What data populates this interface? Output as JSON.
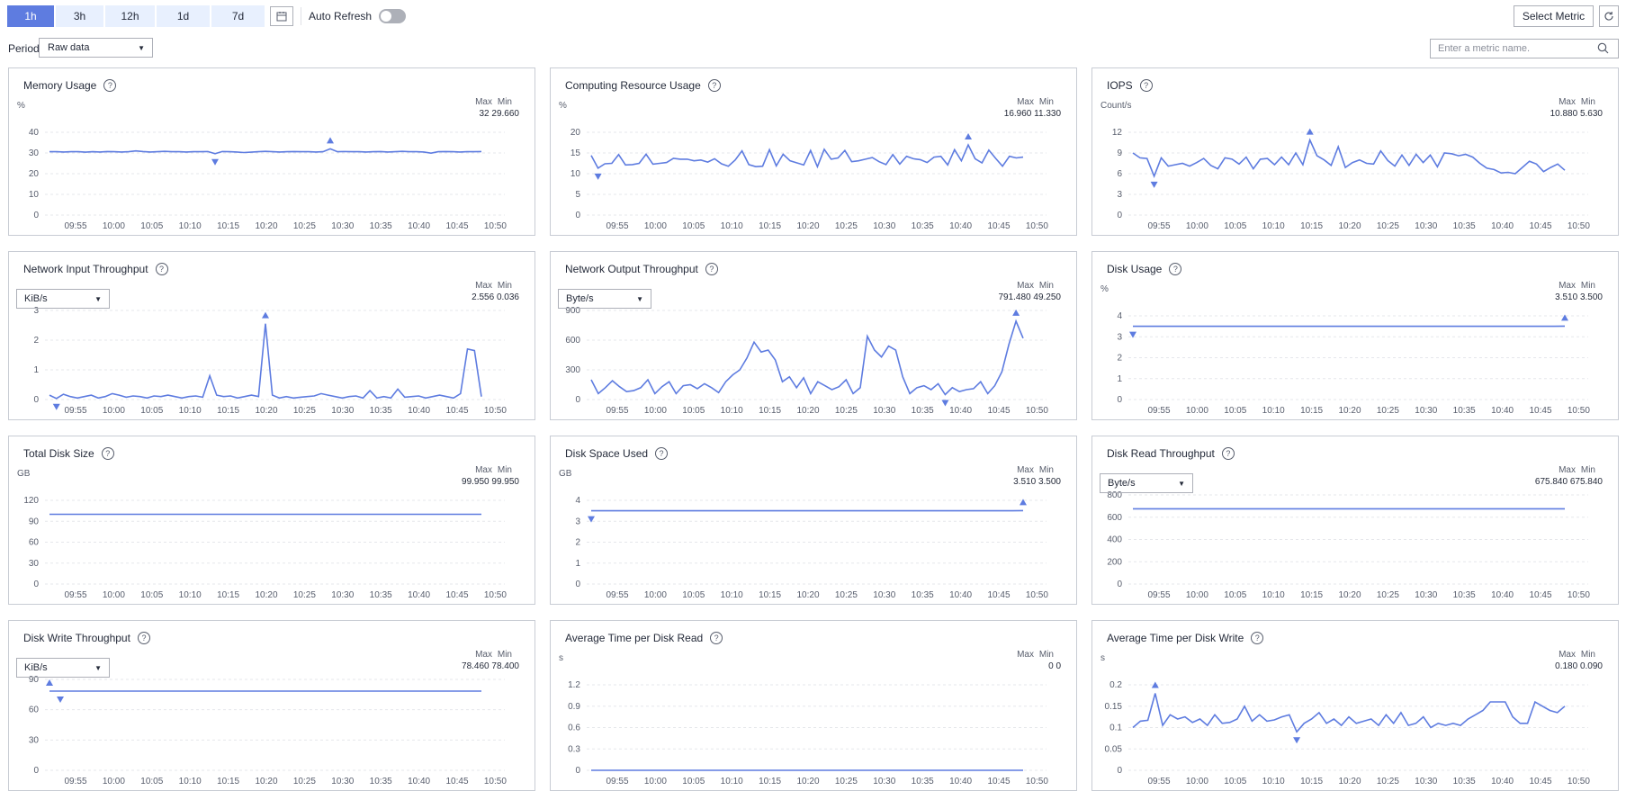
{
  "toolbar": {
    "time_ranges": [
      "1h",
      "3h",
      "12h",
      "1d",
      "7d"
    ],
    "active_range": "1h",
    "auto_refresh_label": "Auto Refresh",
    "auto_refresh_on": false,
    "select_metric_label": "Select Metric",
    "period_label": "Period",
    "period_value": "Raw data",
    "search_placeholder": "Enter a metric name."
  },
  "colors": {
    "accent": "#5e7ce0",
    "line": "#5e7ce0",
    "border": "#c8ccd4",
    "grid": "#e5e7eb"
  },
  "max_label": "Max",
  "min_label": "Min",
  "x_ticks": [
    "09:55",
    "10:00",
    "10:05",
    "10:10",
    "10:15",
    "10:20",
    "10:25",
    "10:30",
    "10:35",
    "10:40",
    "10:45",
    "10:50"
  ],
  "charts": [
    {
      "title": "Memory Usage",
      "unit": "%",
      "selector": null,
      "max": "32",
      "min": "29.660",
      "y_ticks": [
        0,
        10,
        20,
        30,
        40
      ],
      "ylim": [
        0,
        40
      ],
      "values": [
        30.6,
        30.6,
        30.5,
        30.6,
        30.6,
        30.4,
        30.6,
        30.5,
        30.7,
        30.6,
        30.5,
        30.6,
        31.0,
        30.7,
        30.5,
        30.6,
        30.8,
        30.6,
        30.6,
        30.5,
        30.6,
        30.6,
        30.7,
        29.66,
        30.7,
        30.6,
        30.5,
        30.2,
        30.4,
        30.6,
        30.8,
        30.6,
        30.5,
        30.6,
        30.7,
        30.6,
        30.6,
        30.5,
        30.6,
        32.0,
        30.6,
        30.7,
        30.6,
        30.6,
        30.5,
        30.6,
        30.7,
        30.5,
        30.6,
        30.8,
        30.6,
        30.6,
        30.5,
        29.9,
        30.6,
        30.7,
        30.6,
        30.5,
        30.6,
        30.6,
        30.7
      ]
    },
    {
      "title": "Computing Resource Usage",
      "unit": "%",
      "selector": null,
      "max": "16.960",
      "min": "11.330",
      "y_ticks": [
        0,
        5,
        10,
        15,
        20
      ],
      "ylim": [
        0,
        20
      ],
      "values": [
        14.4,
        11.33,
        12.4,
        12.5,
        14.6,
        12.1,
        12.2,
        12.5,
        14.7,
        12.3,
        12.5,
        12.7,
        13.7,
        13.5,
        13.5,
        13.1,
        13.3,
        12.8,
        13.6,
        12.4,
        11.8,
        13.3,
        15.5,
        12.2,
        11.7,
        11.8,
        15.8,
        11.9,
        14.7,
        13.1,
        12.6,
        12.1,
        15.6,
        11.7,
        15.9,
        13.5,
        13.8,
        15.6,
        12.9,
        13.1,
        13.5,
        13.9,
        12.9,
        12.2,
        14.6,
        12.3,
        14.2,
        13.6,
        13.4,
        12.7,
        14.0,
        14.2,
        12.1,
        15.8,
        13.1,
        16.96,
        13.6,
        12.6,
        15.7,
        13.7,
        11.8,
        14.2,
        13.8,
        14.0
      ]
    },
    {
      "title": "IOPS",
      "unit": "Count/s",
      "selector": null,
      "max": "10.880",
      "min": "5.630",
      "y_ticks": [
        0,
        3,
        6,
        9,
        12
      ],
      "ylim": [
        0,
        12
      ],
      "values": [
        9.0,
        8.3,
        8.2,
        5.63,
        8.3,
        7.1,
        7.3,
        7.5,
        7.1,
        7.6,
        8.2,
        7.2,
        6.7,
        8.3,
        8.1,
        7.4,
        8.4,
        6.7,
        8.1,
        8.2,
        7.3,
        8.4,
        7.3,
        9.0,
        7.3,
        10.88,
        8.6,
        8.0,
        7.2,
        9.9,
        6.9,
        7.6,
        8.0,
        7.5,
        7.4,
        9.3,
        7.9,
        7.1,
        8.7,
        7.2,
        8.8,
        7.6,
        8.7,
        7.0,
        9.0,
        8.9,
        8.6,
        8.8,
        8.4,
        7.5,
        6.8,
        6.6,
        6.1,
        6.2,
        6.0,
        6.9,
        7.8,
        7.4,
        6.3,
        6.9,
        7.4,
        6.5
      ]
    },
    {
      "title": "Network Input Throughput",
      "unit": null,
      "selector": "KiB/s",
      "max": "2.556",
      "min": "0.036",
      "y_ticks": [
        0,
        1,
        2,
        3
      ],
      "ylim": [
        0,
        3
      ],
      "values": [
        0.15,
        0.036,
        0.18,
        0.1,
        0.05,
        0.1,
        0.15,
        0.05,
        0.1,
        0.2,
        0.15,
        0.08,
        0.12,
        0.1,
        0.05,
        0.12,
        0.1,
        0.15,
        0.1,
        0.05,
        0.1,
        0.12,
        0.08,
        0.8,
        0.15,
        0.1,
        0.12,
        0.05,
        0.1,
        0.15,
        0.1,
        2.556,
        0.15,
        0.05,
        0.1,
        0.05,
        0.08,
        0.1,
        0.12,
        0.2,
        0.15,
        0.1,
        0.05,
        0.1,
        0.12,
        0.05,
        0.3,
        0.05,
        0.1,
        0.05,
        0.35,
        0.08,
        0.1,
        0.12,
        0.05,
        0.1,
        0.15,
        0.1,
        0.05,
        0.2,
        1.7,
        1.65,
        0.1
      ]
    },
    {
      "title": "Network Output Throughput",
      "unit": null,
      "selector": "Byte/s",
      "max": "791.480",
      "min": "49.250",
      "y_ticks": [
        0,
        300,
        600,
        900
      ],
      "ylim": [
        0,
        900
      ],
      "values": [
        200,
        60,
        120,
        190,
        130,
        80,
        90,
        120,
        200,
        60,
        130,
        180,
        60,
        140,
        150,
        110,
        160,
        120,
        70,
        180,
        250,
        300,
        420,
        580,
        480,
        500,
        400,
        180,
        230,
        120,
        220,
        60,
        180,
        140,
        100,
        130,
        200,
        60,
        120,
        640,
        500,
        430,
        540,
        500,
        230,
        60,
        120,
        140,
        100,
        160,
        50,
        120,
        80,
        100,
        110,
        180,
        60,
        140,
        280,
        560,
        791.48,
        620
      ]
    },
    {
      "title": "Disk Usage",
      "unit": "%",
      "selector": null,
      "max": "3.510",
      "min": "3.500",
      "y_ticks": [
        0,
        1,
        2,
        3,
        4
      ],
      "ylim": [
        0,
        4
      ],
      "values": [
        3.5,
        3.5,
        3.5,
        3.5,
        3.5,
        3.5,
        3.5,
        3.5,
        3.5,
        3.5,
        3.5,
        3.5,
        3.5,
        3.5,
        3.5,
        3.5,
        3.5,
        3.5,
        3.5,
        3.5,
        3.5,
        3.5,
        3.5,
        3.5,
        3.5,
        3.5,
        3.5,
        3.5,
        3.5,
        3.5,
        3.5,
        3.5,
        3.5,
        3.5,
        3.5,
        3.5,
        3.5,
        3.5,
        3.5,
        3.5,
        3.51
      ]
    },
    {
      "title": "Total Disk Size",
      "unit": "GB",
      "selector": null,
      "max": "99.950",
      "min": "99.950",
      "y_ticks": [
        0,
        30,
        60,
        90,
        120
      ],
      "ylim": [
        0,
        120
      ],
      "values": [
        99.95,
        99.95,
        99.95,
        99.95,
        99.95,
        99.95,
        99.95,
        99.95,
        99.95,
        99.95,
        99.95,
        99.95,
        99.95,
        99.95,
        99.95,
        99.95,
        99.95,
        99.95,
        99.95,
        99.95,
        99.95,
        99.95,
        99.95,
        99.95,
        99.95,
        99.95,
        99.95,
        99.95,
        99.95,
        99.95,
        99.95,
        99.95,
        99.95,
        99.95,
        99.95,
        99.95,
        99.95,
        99.95,
        99.95,
        99.95,
        99.95
      ]
    },
    {
      "title": "Disk Space Used",
      "unit": "GB",
      "selector": null,
      "max": "3.510",
      "min": "3.500",
      "y_ticks": [
        0,
        1,
        2,
        3,
        4
      ],
      "ylim": [
        0,
        4
      ],
      "values": [
        3.5,
        3.5,
        3.5,
        3.5,
        3.5,
        3.5,
        3.5,
        3.5,
        3.5,
        3.5,
        3.5,
        3.5,
        3.5,
        3.5,
        3.5,
        3.5,
        3.5,
        3.5,
        3.5,
        3.5,
        3.5,
        3.5,
        3.5,
        3.5,
        3.5,
        3.5,
        3.5,
        3.5,
        3.5,
        3.5,
        3.5,
        3.5,
        3.5,
        3.5,
        3.5,
        3.5,
        3.5,
        3.5,
        3.5,
        3.5,
        3.51
      ]
    },
    {
      "title": "Disk Read Throughput",
      "unit": null,
      "selector": "Byte/s",
      "max": "675.840",
      "min": "675.840",
      "y_ticks": [
        0,
        200,
        400,
        600,
        800
      ],
      "ylim": [
        0,
        800
      ],
      "values": [
        675.84,
        675.84,
        675.84,
        675.84,
        675.84,
        675.84,
        675.84,
        675.84,
        675.84,
        675.84,
        675.84,
        675.84,
        675.84,
        675.84,
        675.84,
        675.84,
        675.84,
        675.84,
        675.84,
        675.84,
        675.84,
        675.84,
        675.84,
        675.84,
        675.84,
        675.84,
        675.84,
        675.84,
        675.84,
        675.84,
        675.84,
        675.84,
        675.84,
        675.84,
        675.84,
        675.84,
        675.84,
        675.84,
        675.84,
        675.84,
        675.84
      ]
    },
    {
      "title": "Disk Write Throughput",
      "unit": null,
      "selector": "KiB/s",
      "max": "78.460",
      "min": "78.400",
      "y_ticks": [
        0,
        30,
        60,
        90
      ],
      "ylim": [
        0,
        90
      ],
      "values": [
        78.46,
        78.4,
        78.4,
        78.4,
        78.4,
        78.4,
        78.4,
        78.4,
        78.4,
        78.4,
        78.4,
        78.4,
        78.4,
        78.4,
        78.4,
        78.4,
        78.4,
        78.4,
        78.4,
        78.4,
        78.4,
        78.4,
        78.4,
        78.4,
        78.4,
        78.4,
        78.4,
        78.4,
        78.4,
        78.4,
        78.4,
        78.4,
        78.4,
        78.4,
        78.4,
        78.4,
        78.4,
        78.4,
        78.4,
        78.4,
        78.4
      ]
    },
    {
      "title": "Average Time per Disk Read",
      "unit": "s",
      "selector": null,
      "max": "0",
      "min": "0",
      "y_ticks": [
        0,
        0.3,
        0.6,
        0.9,
        1.2
      ],
      "ylim": [
        0,
        1.2
      ],
      "values": [
        0,
        0,
        0,
        0,
        0,
        0,
        0,
        0,
        0,
        0,
        0,
        0,
        0,
        0,
        0,
        0,
        0,
        0,
        0,
        0,
        0,
        0,
        0,
        0,
        0,
        0,
        0,
        0,
        0,
        0,
        0,
        0,
        0,
        0,
        0,
        0,
        0,
        0,
        0,
        0,
        0
      ]
    },
    {
      "title": "Average Time per Disk Write",
      "unit": "s",
      "selector": null,
      "max": "0.180",
      "min": "0.090",
      "y_ticks": [
        0,
        0.05,
        0.1,
        0.15,
        0.2
      ],
      "ylim": [
        0,
        0.2
      ],
      "values": [
        0.1,
        0.115,
        0.117,
        0.18,
        0.105,
        0.13,
        0.12,
        0.125,
        0.112,
        0.12,
        0.105,
        0.13,
        0.11,
        0.112,
        0.12,
        0.15,
        0.115,
        0.13,
        0.115,
        0.118,
        0.125,
        0.13,
        0.09,
        0.11,
        0.12,
        0.135,
        0.11,
        0.12,
        0.105,
        0.125,
        0.11,
        0.115,
        0.12,
        0.105,
        0.13,
        0.11,
        0.135,
        0.105,
        0.11,
        0.125,
        0.1,
        0.11,
        0.105,
        0.11,
        0.105,
        0.12,
        0.13,
        0.14,
        0.16,
        0.16,
        0.16,
        0.125,
        0.11,
        0.11,
        0.16,
        0.15,
        0.14,
        0.135,
        0.15
      ]
    }
  ]
}
